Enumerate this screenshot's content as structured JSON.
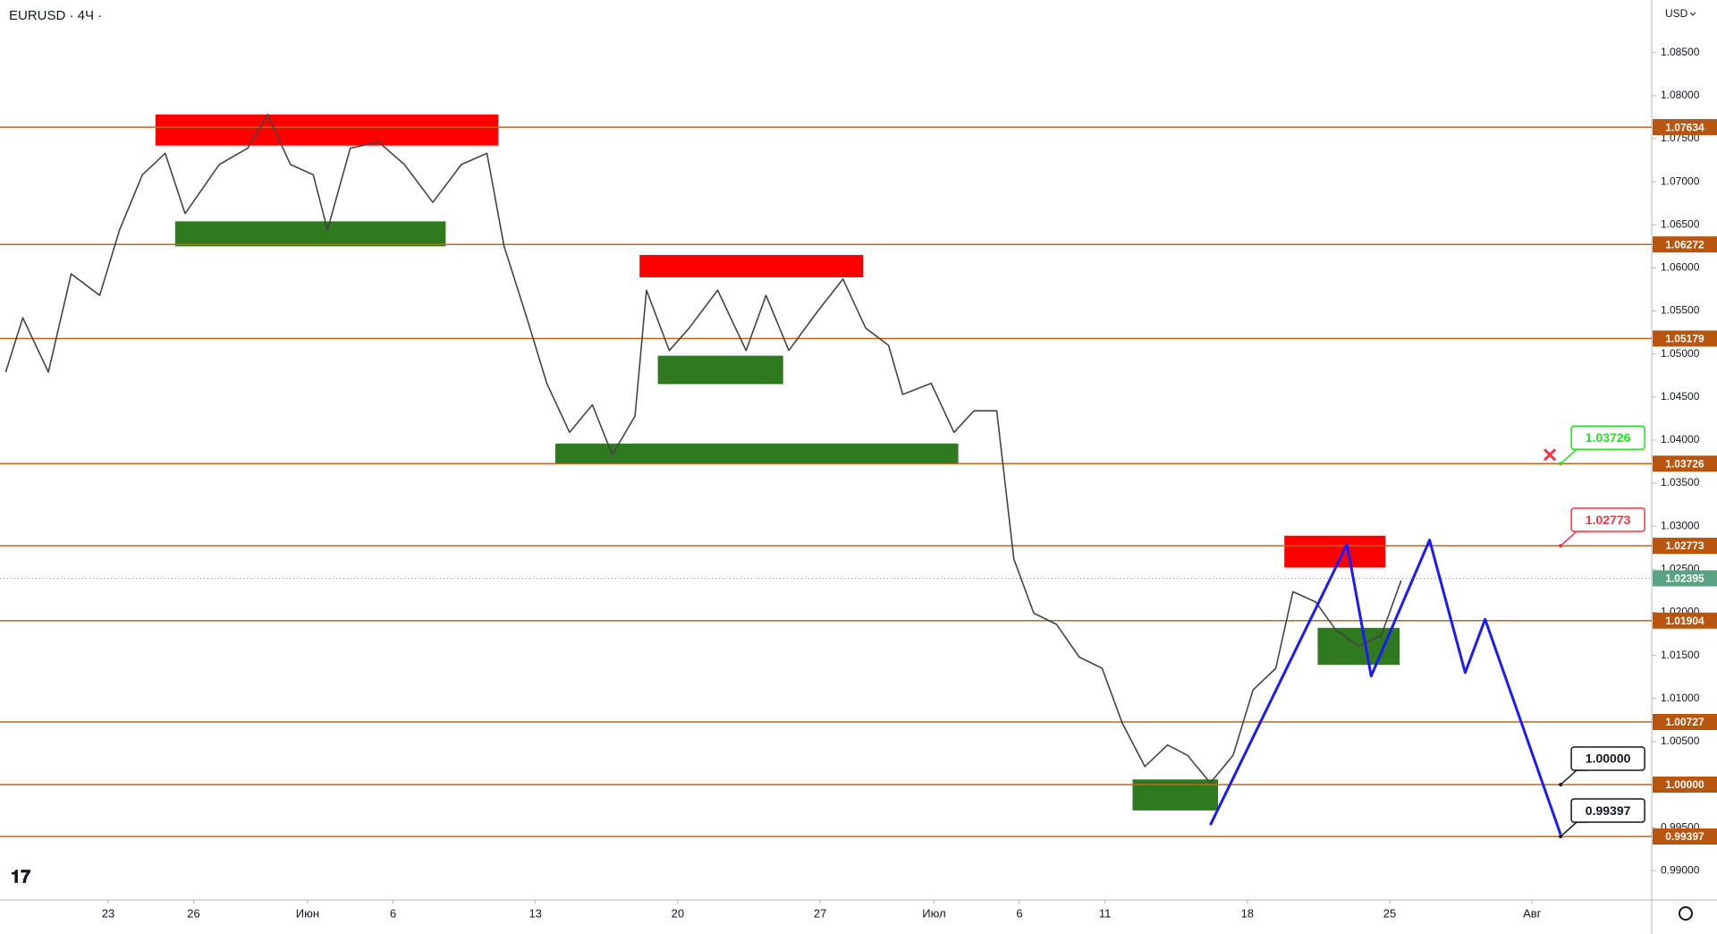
{
  "chart_data": {
    "type": "line",
    "title": "EURUSD · 4Ч ·",
    "currency": "USD",
    "color": "#444444",
    "x": [
      0.2,
      0.8,
      1.7,
      2.5,
      3.5,
      4.2,
      5.0,
      5.8,
      6.5,
      7.7,
      8.7,
      9.4,
      10.2,
      11.0,
      11.5,
      12.3,
      13.3,
      14.2,
      15.2,
      16.2,
      17.1,
      17.7,
      18.5,
      19.2,
      20.0,
      20.8,
      21.5,
      22.3,
      22.7,
      23.5,
      24.2,
      25.2,
      26.2,
      26.9,
      27.7,
      28.7,
      29.6,
      30.4,
      31.2,
      31.7,
      32.7,
      33.5,
      34.2,
      35.0,
      35.6,
      36.3,
      37.1,
      37.9,
      38.7,
      39.4,
      40.2,
      41.0,
      41.7,
      42.5,
      43.3,
      44.0,
      44.8,
      45.4,
      46.2,
      46.9,
      47.7,
      48.5,
      49.2
    ],
    "values": [
      1.0479,
      1.0542,
      1.0479,
      1.0593,
      1.0568,
      1.0644,
      1.0708,
      1.0733,
      1.0663,
      1.072,
      1.0739,
      1.0778,
      1.072,
      1.0708,
      1.0644,
      1.0739,
      1.0746,
      1.072,
      1.0676,
      1.072,
      1.0733,
      1.0625,
      1.0542,
      1.0466,
      1.0409,
      1.0441,
      1.0383,
      1.0428,
      1.0574,
      1.0504,
      1.053,
      1.0574,
      1.0504,
      1.0568,
      1.0504,
      1.0549,
      1.0587,
      1.053,
      1.051,
      1.0453,
      1.0466,
      1.0409,
      1.0434,
      1.0434,
      1.0262,
      1.0199,
      1.0186,
      1.0148,
      1.0135,
      1.0072,
      1.0021,
      1.0046,
      1.0034,
      1.0002,
      1.0034,
      1.011,
      1.0135,
      1.0224,
      1.0212,
      1.018,
      1.0161,
      1.0173,
      1.0237
    ],
    "xlim": [
      0,
      58
    ],
    "xticks": [
      {
        "value": 3.8,
        "label": "23"
      },
      {
        "value": 6.8,
        "label": "26"
      },
      {
        "value": 10.8,
        "label": "Июн"
      },
      {
        "value": 13.8,
        "label": "6"
      },
      {
        "value": 18.8,
        "label": "13"
      },
      {
        "value": 23.8,
        "label": "20"
      },
      {
        "value": 28.8,
        "label": "27"
      },
      {
        "value": 32.8,
        "label": "Июл"
      },
      {
        "value": 35.8,
        "label": "6"
      },
      {
        "value": 38.8,
        "label": "11"
      },
      {
        "value": 43.8,
        "label": "18"
      },
      {
        "value": 48.8,
        "label": "25"
      },
      {
        "value": 53.8,
        "label": "Авг"
      }
    ],
    "ylim": [
      0.9866,
      1.0911
    ],
    "yticks": [
      {
        "value": 0.99,
        "label": "0.99000"
      },
      {
        "value": 0.995,
        "label": "0.99500"
      },
      {
        "value": 1.0,
        "label": "1.00000"
      },
      {
        "value": 1.005,
        "label": "1.00500"
      },
      {
        "value": 1.01,
        "label": "1.01000"
      },
      {
        "value": 1.015,
        "label": "1.01500"
      },
      {
        "value": 1.02,
        "label": "1.02000"
      },
      {
        "value": 1.025,
        "label": "1.02500"
      },
      {
        "value": 1.03,
        "label": "1.03000"
      },
      {
        "value": 1.035,
        "label": "1.03500"
      },
      {
        "value": 1.04,
        "label": "1.04000"
      },
      {
        "value": 1.045,
        "label": "1.04500"
      },
      {
        "value": 1.05,
        "label": "1.05000"
      },
      {
        "value": 1.055,
        "label": "1.05500"
      },
      {
        "value": 1.06,
        "label": "1.06000"
      },
      {
        "value": 1.065,
        "label": "1.06500"
      },
      {
        "value": 1.07,
        "label": "1.07000"
      },
      {
        "value": 1.075,
        "label": "1.07500"
      },
      {
        "value": 1.08,
        "label": "1.08000"
      },
      {
        "value": 1.085,
        "label": "1.08500"
      }
    ],
    "levels": [
      {
        "value": 1.07634,
        "label": "1.07634"
      },
      {
        "value": 1.06272,
        "label": "1.06272"
      },
      {
        "value": 1.05179,
        "label": "1.05179"
      },
      {
        "value": 1.03726,
        "label": "1.03726"
      },
      {
        "value": 1.02773,
        "label": "1.02773"
      },
      {
        "value": 1.01904,
        "label": "1.01904"
      },
      {
        "value": 1.00727,
        "label": "1.00727"
      },
      {
        "value": 1.0,
        "label": "1.00000"
      },
      {
        "value": 0.99397,
        "label": "0.99397"
      }
    ],
    "level_color": "#c0661a",
    "last_price": {
      "value": 1.02395,
      "label": "1.02395",
      "color": "#5aa382"
    },
    "zones": [
      {
        "x": [
          5.46,
          17.5
        ],
        "y": [
          1.0742,
          1.0778
        ],
        "color": "#ff0000"
      },
      {
        "x": [
          6.15,
          15.65
        ],
        "y": [
          1.0625,
          1.0654
        ],
        "color": "#2f7a1f"
      },
      {
        "x": [
          22.46,
          30.31
        ],
        "y": [
          1.0589,
          1.0615
        ],
        "color": "#ff0000"
      },
      {
        "x": [
          23.1,
          27.5
        ],
        "y": [
          1.0465,
          1.0498
        ],
        "color": "#2f7a1f"
      },
      {
        "x": [
          19.5,
          33.65
        ],
        "y": [
          1.0373,
          1.0396
        ],
        "color": "#2f7a1f"
      },
      {
        "x": [
          45.1,
          48.65
        ],
        "y": [
          1.0252,
          1.0289
        ],
        "color": "#ff0000"
      },
      {
        "x": [
          46.27,
          49.15
        ],
        "y": [
          1.0139,
          1.0182
        ],
        "color": "#2f7a1f"
      },
      {
        "x": [
          39.77,
          42.77
        ],
        "y": [
          0.997,
          1.0006
        ],
        "color": "#2f7a1f"
      }
    ],
    "projection": {
      "x": [
        42.5,
        47.3,
        48.15,
        50.2,
        51.45,
        52.15,
        54.8
      ],
      "values": [
        0.9953,
        1.0279,
        1.0126,
        1.0284,
        1.013,
        1.0192,
        0.9942
      ],
      "color": "#1a1aff"
    },
    "callouts": [
      {
        "value": 1.03726,
        "label": "1.03726",
        "color": "#22e022"
      },
      {
        "value": 1.02773,
        "label": "1.02773",
        "color": "#f23645"
      },
      {
        "value": 1.0,
        "label": "1.00000",
        "color": "#131722"
      },
      {
        "value": 0.99397,
        "label": "0.99397",
        "color": "#131722"
      }
    ],
    "callout_x": 54.8
  }
}
